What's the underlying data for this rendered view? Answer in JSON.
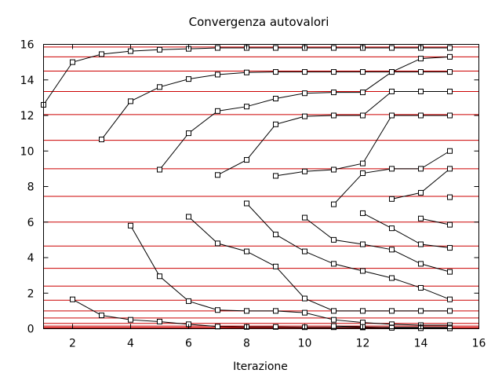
{
  "chart_data": {
    "type": "line",
    "title": "Convergenza autovalori",
    "xlabel": "Iterazione",
    "ylabel": "",
    "xlim": [
      1,
      16
    ],
    "ylim": [
      0,
      16
    ],
    "xticks": [
      2,
      4,
      6,
      8,
      10,
      12,
      14,
      16
    ],
    "yticks": [
      0,
      2,
      4,
      6,
      8,
      10,
      12,
      14,
      16
    ],
    "reference_lines_color": "#cc0000",
    "series_color": "#000000",
    "marker": "open-square",
    "reference_lines": [
      15.85,
      15.3,
      14.5,
      13.35,
      12.05,
      10.6,
      9.0,
      7.45,
      6.0,
      4.65,
      3.4,
      2.4,
      1.6,
      1.0,
      0.6,
      0.3,
      0.15,
      0.07,
      0.02
    ],
    "series": [
      {
        "points": [
          [
            1,
            12.6
          ],
          [
            2,
            15.0
          ],
          [
            3,
            15.45
          ],
          [
            4,
            15.62
          ],
          [
            5,
            15.7
          ],
          [
            6,
            15.75
          ],
          [
            7,
            15.8
          ],
          [
            8,
            15.8
          ],
          [
            9,
            15.8
          ],
          [
            10,
            15.8
          ],
          [
            11,
            15.8
          ],
          [
            12,
            15.8
          ],
          [
            13,
            15.8
          ],
          [
            14,
            15.8
          ],
          [
            15,
            15.8
          ]
        ]
      },
      {
        "points": [
          [
            3,
            10.65
          ],
          [
            4,
            12.8
          ],
          [
            5,
            13.6
          ],
          [
            6,
            14.05
          ],
          [
            7,
            14.3
          ],
          [
            8,
            14.42
          ],
          [
            9,
            14.45
          ],
          [
            10,
            14.45
          ],
          [
            11,
            14.45
          ],
          [
            12,
            14.45
          ],
          [
            13,
            14.45
          ],
          [
            14,
            14.45
          ],
          [
            15,
            14.45
          ]
        ]
      },
      {
        "points": [
          [
            5,
            8.95
          ],
          [
            6,
            11.0
          ],
          [
            7,
            12.25
          ],
          [
            8,
            12.5
          ],
          [
            9,
            12.95
          ],
          [
            10,
            13.25
          ],
          [
            11,
            13.3
          ],
          [
            12,
            13.3
          ],
          [
            13,
            14.45
          ],
          [
            14,
            15.2
          ],
          [
            15,
            15.3
          ]
        ]
      },
      {
        "points": [
          [
            7,
            8.65
          ],
          [
            8,
            9.5
          ],
          [
            9,
            11.5
          ],
          [
            10,
            11.95
          ],
          [
            11,
            12.0
          ],
          [
            12,
            12.0
          ],
          [
            13,
            13.35
          ],
          [
            14,
            13.35
          ],
          [
            15,
            13.35
          ]
        ]
      },
      {
        "points": [
          [
            9,
            8.6
          ],
          [
            10,
            8.85
          ],
          [
            11,
            8.95
          ],
          [
            12,
            9.3
          ],
          [
            13,
            12.0
          ],
          [
            14,
            12.0
          ],
          [
            15,
            12.0
          ]
        ]
      },
      {
        "points": [
          [
            11,
            7.0
          ],
          [
            12,
            8.75
          ],
          [
            13,
            9.0
          ],
          [
            14,
            9.0
          ],
          [
            15,
            10.0
          ]
        ]
      },
      {
        "points": [
          [
            13,
            7.3
          ],
          [
            14,
            7.65
          ],
          [
            15,
            9.0
          ]
        ]
      },
      {
        "points": [
          [
            15,
            7.4
          ]
        ]
      },
      {
        "points": [
          [
            14,
            6.2
          ],
          [
            15,
            5.85
          ]
        ]
      },
      {
        "points": [
          [
            12,
            6.5
          ],
          [
            13,
            5.65
          ],
          [
            14,
            4.75
          ],
          [
            15,
            4.55
          ]
        ]
      },
      {
        "points": [
          [
            10,
            6.25
          ],
          [
            11,
            5.0
          ],
          [
            12,
            4.75
          ],
          [
            13,
            4.45
          ],
          [
            14,
            3.65
          ],
          [
            15,
            3.2
          ]
        ]
      },
      {
        "points": [
          [
            8,
            7.05
          ],
          [
            9,
            5.3
          ],
          [
            10,
            4.35
          ],
          [
            11,
            3.65
          ],
          [
            12,
            3.25
          ],
          [
            13,
            2.85
          ],
          [
            14,
            2.3
          ],
          [
            15,
            1.65
          ]
        ]
      },
      {
        "points": [
          [
            6,
            6.3
          ],
          [
            7,
            4.8
          ],
          [
            8,
            4.35
          ],
          [
            9,
            3.5
          ],
          [
            10,
            1.7
          ],
          [
            11,
            1.0
          ],
          [
            12,
            1.0
          ],
          [
            13,
            1.0
          ],
          [
            14,
            1.0
          ],
          [
            15,
            1.0
          ]
        ]
      },
      {
        "points": [
          [
            4,
            5.8
          ],
          [
            5,
            2.95
          ],
          [
            6,
            1.55
          ],
          [
            7,
            1.05
          ],
          [
            8,
            1.0
          ],
          [
            9,
            1.0
          ],
          [
            10,
            0.9
          ],
          [
            11,
            0.5
          ],
          [
            12,
            0.35
          ],
          [
            13,
            0.25
          ],
          [
            14,
            0.2
          ],
          [
            15,
            0.2
          ]
        ]
      },
      {
        "points": [
          [
            2,
            1.65
          ],
          [
            3,
            0.75
          ],
          [
            4,
            0.5
          ],
          [
            5,
            0.4
          ],
          [
            6,
            0.25
          ],
          [
            7,
            0.12
          ],
          [
            8,
            0.1
          ],
          [
            9,
            0.1
          ],
          [
            10,
            0.08
          ],
          [
            11,
            0.08
          ],
          [
            12,
            0.07
          ],
          [
            13,
            0.07
          ],
          [
            14,
            0.07
          ],
          [
            15,
            0.07
          ]
        ]
      },
      {
        "points": [
          [
            11,
            0.15
          ],
          [
            12,
            0.1
          ],
          [
            13,
            0.05
          ],
          [
            14,
            0.03
          ],
          [
            15,
            0.02
          ]
        ]
      }
    ]
  }
}
